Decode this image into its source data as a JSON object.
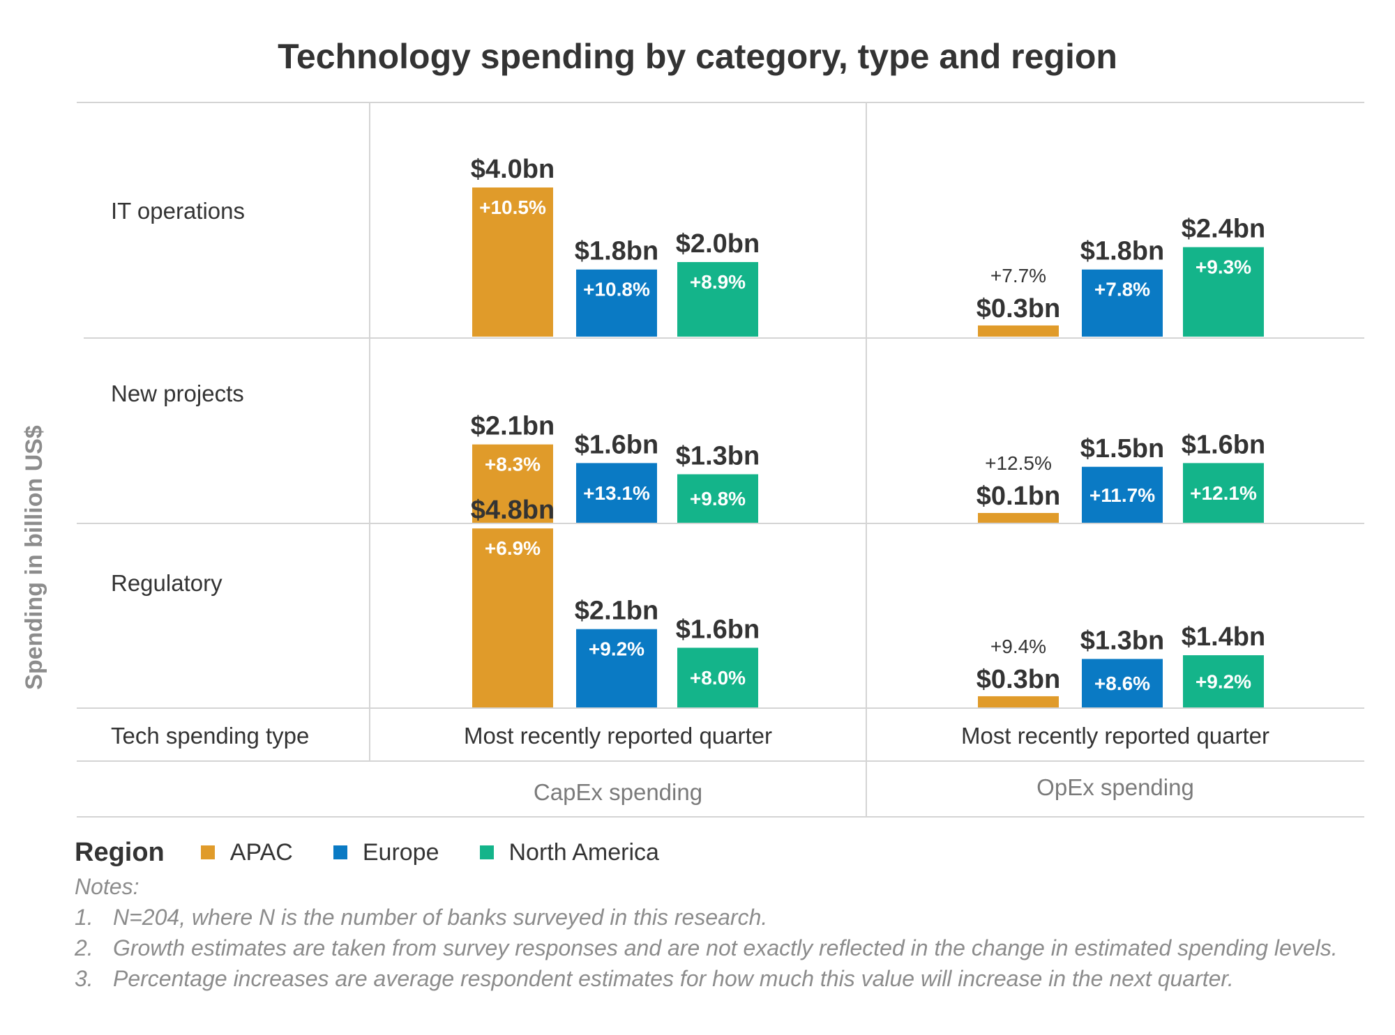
{
  "chart_data": {
    "type": "bar",
    "title": "Technology spending by category, type and region",
    "ylabel": "Spending in billion US$",
    "row_header": "Tech spending type",
    "rows": [
      "IT operations",
      "New projects",
      "Regulatory"
    ],
    "panels": [
      {
        "type_label": "Most recently reported quarter",
        "group_label": "CapEx spending"
      },
      {
        "type_label": "Most recently reported quarter",
        "group_label": "OpEx spending"
      }
    ],
    "series": [
      {
        "name": "APAC",
        "color": "#E09B2A"
      },
      {
        "name": "Europe",
        "color": "#0A7AC4"
      },
      {
        "name": "North America",
        "color": "#14B48A"
      }
    ],
    "values": {
      "CapEx": {
        "IT operations": {
          "APAC": 4.0,
          "Europe": 1.8,
          "North America": 2.0
        },
        "New projects": {
          "APAC": 2.1,
          "Europe": 1.6,
          "North America": 1.3
        },
        "Regulatory": {
          "APAC": 4.8,
          "Europe": 2.1,
          "North America": 1.6
        }
      },
      "OpEx": {
        "IT operations": {
          "APAC": 0.3,
          "Europe": 1.8,
          "North America": 2.4
        },
        "New projects": {
          "APAC": 0.1,
          "Europe": 1.5,
          "North America": 1.6
        },
        "Regulatory": {
          "APAC": 0.3,
          "Europe": 1.3,
          "North America": 1.4
        }
      }
    },
    "value_labels": {
      "CapEx": {
        "IT operations": {
          "APAC": "$4.0bn",
          "Europe": "$1.8bn",
          "North America": "$2.0bn"
        },
        "New projects": {
          "APAC": "$2.1bn",
          "Europe": "$1.6bn",
          "North America": "$1.3bn"
        },
        "Regulatory": {
          "APAC": "$4.8bn",
          "Europe": "$2.1bn",
          "North America": "$1.6bn"
        }
      },
      "OpEx": {
        "IT operations": {
          "APAC": "$0.3bn",
          "Europe": "$1.8bn",
          "North America": "$2.4bn"
        },
        "New projects": {
          "APAC": "$0.1bn",
          "Europe": "$1.5bn",
          "North America": "$1.6bn"
        },
        "Regulatory": {
          "APAC": "$0.3bn",
          "Europe": "$1.3bn",
          "North America": "$1.4bn"
        }
      }
    },
    "growth_labels": {
      "CapEx": {
        "IT operations": {
          "APAC": "+10.5%",
          "Europe": "+10.8%",
          "North America": "+8.9%"
        },
        "New projects": {
          "APAC": "+8.3%",
          "Europe": "+13.1%",
          "North America": "+9.8%"
        },
        "Regulatory": {
          "APAC": "+6.9%",
          "Europe": "+9.2%",
          "North America": "+8.0%"
        }
      },
      "OpEx": {
        "IT operations": {
          "APAC": "+7.7%",
          "Europe": "+7.8%",
          "North America": "+9.3%"
        },
        "New projects": {
          "APAC": "+12.5%",
          "Europe": "+11.7%",
          "North America": "+12.1%"
        },
        "Regulatory": {
          "APAC": "+9.4%",
          "Europe": "+8.6%",
          "North America": "+9.2%"
        }
      }
    }
  },
  "legend": {
    "title": "Region",
    "items": [
      {
        "label": "APAC",
        "color": "#E09B2A"
      },
      {
        "label": "Europe",
        "color": "#0A7AC4"
      },
      {
        "label": "North America",
        "color": "#14B48A"
      }
    ]
  },
  "notes": {
    "heading": "Notes:",
    "items": [
      {
        "num": "1.",
        "text": "N=204, where N is the number of banks surveyed in this research."
      },
      {
        "num": "2.",
        "text": "Growth estimates are taken from survey responses and are not exactly reflected in the change in estimated spending levels."
      },
      {
        "num": "3.",
        "text": "Percentage increases are average respondent estimates for how much this value will increase in the next quarter."
      }
    ]
  }
}
